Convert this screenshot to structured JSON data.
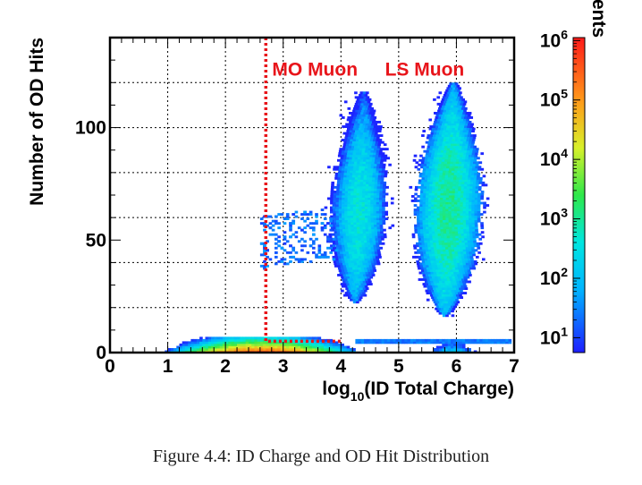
{
  "chart_data": {
    "type": "heatmap",
    "xlabel_base": "log",
    "xlabel_sub": "10",
    "xlabel_rest": "(ID Total Charge)",
    "ylabel": "Number of OD Hits",
    "colorbar_label": "Number of Events",
    "xlim": [
      0,
      7
    ],
    "ylim": [
      0,
      140
    ],
    "x_ticks": [
      0,
      1,
      2,
      3,
      4,
      5,
      6,
      7
    ],
    "y_ticks": [
      0,
      50,
      100
    ],
    "y_ticklabels": [
      "0",
      "50",
      "100"
    ],
    "colorbar_scale": "log",
    "colorbar_ticks": [
      {
        "base": "10",
        "exp": "1",
        "log": 1
      },
      {
        "base": "10",
        "exp": "2",
        "log": 2
      },
      {
        "base": "10",
        "exp": "3",
        "log": 3
      },
      {
        "base": "10",
        "exp": "4",
        "log": 4
      },
      {
        "base": "10",
        "exp": "5",
        "log": 5
      },
      {
        "base": "10",
        "exp": "6",
        "log": 6
      }
    ],
    "colorbar_range_log": [
      0.75,
      6.05
    ],
    "grid": true,
    "annotations": [
      {
        "text": "MO Muon",
        "x": 3.55,
        "y": 123
      },
      {
        "text": "LS Muon",
        "x": 5.45,
        "y": 123
      }
    ],
    "cut_lines": [
      {
        "style": "dotted",
        "color": "#e8141a",
        "points": [
          [
            2.7,
            140
          ],
          [
            2.7,
            5
          ],
          [
            4.0,
            5
          ]
        ]
      }
    ],
    "regions": [
      {
        "name": "MO Muon",
        "x_center": 4.3,
        "y_center": 62,
        "x_halfwidth": 0.45,
        "y_range": [
          22,
          116
        ],
        "peak_log_density": 2.6
      },
      {
        "name": "LS Muon",
        "x_center": 5.85,
        "y_center": 65,
        "x_halfwidth": 0.55,
        "y_range": [
          16,
          120
        ],
        "peak_log_density": 3.0
      },
      {
        "name": "low-hit band",
        "x_range": [
          0.3,
          6.9
        ],
        "y_range": [
          0,
          7
        ],
        "peak_x": 2.6,
        "peak_log_density": 5.5
      }
    ]
  },
  "caption": "Figure 4.4: ID Charge and OD Hit Distribution"
}
